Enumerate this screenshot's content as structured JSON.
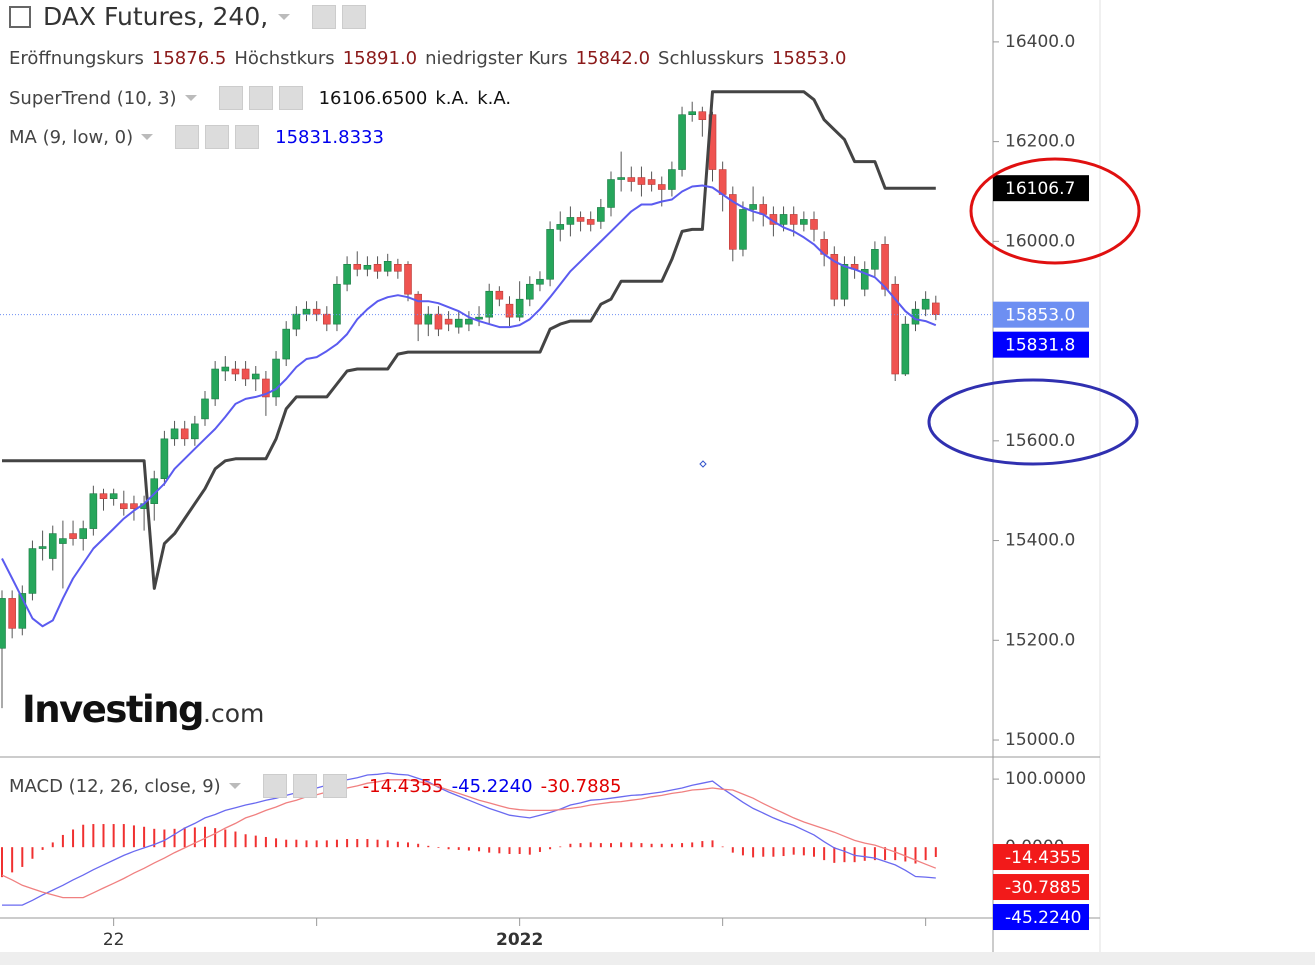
{
  "chart_data": [
    {
      "type": "candlestick",
      "title": "DAX Futures, 240,",
      "header": [
        {
          "label": "Eröffnungskurs",
          "value": "15876.5"
        },
        {
          "label": "Höchstkurs",
          "value": "15891.0"
        },
        {
          "label": "niedrigster Kurs",
          "value": "15842.0"
        },
        {
          "label": "Schlusskurs",
          "value": "15853.0"
        }
      ],
      "categories": [
        null,
        null,
        null,
        null,
        null,
        null,
        null,
        null,
        null,
        null,
        null,
        "22",
        null,
        null,
        null,
        null,
        null,
        null,
        null,
        null,
        null,
        null,
        null,
        null,
        null,
        null,
        null,
        null,
        null,
        null,
        null,
        null,
        null,
        null,
        null,
        null,
        null,
        null,
        null,
        null,
        null,
        null,
        null,
        null,
        null,
        null,
        null,
        null,
        null,
        null,
        null,
        "2022",
        null,
        null,
        null,
        null,
        null,
        null,
        null,
        null,
        null,
        null,
        null,
        null,
        null,
        null,
        null,
        null,
        null,
        null,
        null,
        null,
        null,
        null,
        null,
        null,
        null,
        null,
        null,
        null,
        null,
        null,
        null,
        null,
        null,
        null,
        null,
        null,
        null,
        null,
        null,
        null,
        null
      ],
      "open": [
        15184,
        15284,
        15224,
        15294,
        15384,
        15364,
        15394,
        15414,
        15404,
        15424,
        15494,
        15484,
        15474,
        15474,
        15464,
        15474,
        15524,
        15604,
        15624,
        15604,
        15644,
        15684,
        15740,
        15744,
        15744,
        15724,
        15724,
        15688,
        15764,
        15824,
        15854,
        15864,
        15854,
        15834,
        15914,
        15954,
        15944,
        15954,
        15940,
        15954,
        15954,
        15894,
        15834,
        15854,
        15844,
        15828,
        15834,
        15844,
        15848,
        15900,
        15874,
        15848,
        15884,
        15914,
        15924,
        16024,
        16034,
        16048,
        16044,
        16040,
        16068,
        16124,
        16128,
        16128,
        16124,
        16114,
        16104,
        16144,
        16254,
        16260,
        16254,
        16144,
        16094,
        15984,
        16064,
        16074,
        16054,
        16034,
        16054,
        16034,
        16044,
        16004,
        15974,
        15884,
        15954,
        15904,
        15944,
        15994,
        15914,
        15734,
        15834,
        15864,
        15876.5
      ],
      "high": [
        15300,
        15300,
        15310,
        15400,
        15420,
        15430,
        15440,
        15440,
        15440,
        15510,
        15504,
        15504,
        15500,
        15490,
        15490,
        15540,
        15620,
        15640,
        15640,
        15650,
        15700,
        15760,
        15770,
        15760,
        15760,
        15750,
        15740,
        15780,
        15840,
        15870,
        15880,
        15880,
        15870,
        15930,
        15970,
        15980,
        15970,
        15970,
        15975,
        15965,
        15960,
        15900,
        15870,
        15870,
        15860,
        15860,
        15860,
        15870,
        15915,
        15910,
        15890,
        15920,
        15930,
        15940,
        16040,
        16060,
        16070,
        16060,
        16060,
        16085,
        16140,
        16180,
        16150,
        16150,
        16140,
        16130,
        16160,
        16270,
        16280,
        16270,
        16260,
        16160,
        16110,
        16080,
        16110,
        16090,
        16070,
        16070,
        16070,
        16060,
        16060,
        16020,
        15990,
        15970,
        15970,
        15960,
        16000,
        16010,
        15930,
        15850,
        15880,
        15900,
        15891
      ],
      "low": [
        15064,
        15204,
        15210,
        15280,
        15360,
        15340,
        15304,
        15390,
        15380,
        15410,
        15460,
        15470,
        15450,
        15440,
        15420,
        15440,
        15510,
        15590,
        15590,
        15590,
        15630,
        15670,
        15720,
        15720,
        15710,
        15700,
        15650,
        15670,
        15750,
        15810,
        15840,
        15840,
        15820,
        15820,
        15900,
        15930,
        15930,
        15925,
        15930,
        15925,
        15880,
        15800,
        15810,
        15810,
        15820,
        15815,
        15820,
        15830,
        15835,
        15870,
        15830,
        15840,
        15870,
        15900,
        15910,
        16000,
        16010,
        16020,
        16020,
        16025,
        16050,
        16100,
        16100,
        16090,
        16100,
        16070,
        16090,
        16130,
        16240,
        16210,
        16120,
        16060,
        15960,
        15970,
        16040,
        16030,
        16010,
        16020,
        16010,
        16020,
        16000,
        15950,
        15870,
        15870,
        15925,
        15890,
        15930,
        15890,
        15720,
        15730,
        15820,
        15850,
        15842
      ],
      "close": [
        15284,
        15224,
        15294,
        15384,
        15388,
        15414,
        15404,
        15404,
        15424,
        15494,
        15484,
        15494,
        15464,
        15464,
        15474,
        15524,
        15604,
        15624,
        15604,
        15634,
        15684,
        15744,
        15748,
        15734,
        15724,
        15734,
        15688,
        15764,
        15824,
        15854,
        15864,
        15854,
        15834,
        15914,
        15954,
        15944,
        15952,
        15940,
        15960,
        15940,
        15894,
        15834,
        15854,
        15824,
        15834,
        15844,
        15844,
        15848,
        15900,
        15884,
        15848,
        15884,
        15914,
        15924,
        16024,
        16034,
        16048,
        16040,
        16034,
        16068,
        16124,
        16128,
        16120,
        16114,
        16114,
        16104,
        16144,
        16254,
        16260,
        16244,
        16144,
        16094,
        15984,
        16064,
        16074,
        16054,
        16034,
        16054,
        16034,
        16044,
        16024,
        15974,
        15884,
        15954,
        15944,
        15944,
        15984,
        15904,
        15734,
        15834,
        15864,
        15884,
        15853
      ],
      "up_color": "#26a65b",
      "down_color": "#ef5350",
      "last_price_label": "15853.0",
      "last_price_color": "#6d8ff2",
      "series": [
        {
          "name": "SuperTrend (10, 3)",
          "color": "#444444",
          "values": [
            15560,
            15560,
            15560,
            15560,
            15560,
            15560,
            15560,
            15560,
            15560,
            15560,
            15560,
            15560,
            15560,
            15560,
            15560,
            15304,
            15394,
            15414,
            15444,
            15474,
            15504,
            15544,
            15560,
            15564,
            15564,
            15564,
            15564,
            15604,
            15664,
            15688,
            15688,
            15688,
            15688,
            15714,
            15740,
            15744,
            15744,
            15744,
            15744,
            15774,
            15778,
            15778,
            15778,
            15778,
            15778,
            15778,
            15778,
            15778,
            15778,
            15778,
            15778,
            15778,
            15778,
            15778,
            15824,
            15834,
            15840,
            15840,
            15840,
            15874,
            15884,
            15920,
            15920,
            15920,
            15920,
            15920,
            15964,
            16020,
            16024,
            16024,
            16300,
            16300,
            16300,
            16300,
            16300,
            16300,
            16300,
            16300,
            16300,
            16300,
            16284,
            16244,
            16224,
            16204,
            16160,
            16160,
            16160,
            16106.65,
            16106.65,
            16106.65,
            16106.65,
            16106.65,
            16106.65
          ],
          "legend_values": [
            "16106.6500",
            "k.A.",
            "k.A."
          ],
          "legend_color": "#111111",
          "axis_label": "16106.7",
          "axis_label_color": "#000000"
        },
        {
          "name": "MA (9, low, 0)",
          "color": "#5b5bf0",
          "values": [
            15364,
            15324,
            15284,
            15244,
            15228,
            15240,
            15284,
            15324,
            15354,
            15384,
            15404,
            15424,
            15444,
            15460,
            15474,
            15494,
            15514,
            15544,
            15564,
            15584,
            15604,
            15624,
            15648,
            15674,
            15684,
            15688,
            15694,
            15704,
            15724,
            15748,
            15764,
            15768,
            15780,
            15794,
            15814,
            15844,
            15864,
            15880,
            15888,
            15892,
            15888,
            15880,
            15880,
            15876,
            15868,
            15860,
            15848,
            15840,
            15834,
            15828,
            15828,
            15832,
            15844,
            15864,
            15888,
            15914,
            15940,
            15960,
            15980,
            16000,
            16020,
            16040,
            16060,
            16074,
            16074,
            16080,
            16084,
            16100,
            16110,
            16112,
            16108,
            16094,
            16080,
            16068,
            16060,
            16054,
            16040,
            16028,
            16020,
            16008,
            15994,
            15974,
            15960,
            15950,
            15944,
            15936,
            15928,
            15908,
            15884,
            15860,
            15844,
            15840,
            15831.8333
          ],
          "legend_values": [
            "15831.8333"
          ],
          "legend_color": "#0000ee",
          "axis_label": "15831.8",
          "axis_label_color": "#0000ff"
        }
      ],
      "ylim": [
        14976,
        16484
      ],
      "yticks": [
        {
          "value": 15000,
          "label": "15000.0"
        },
        {
          "value": 15200,
          "label": "15200.0"
        },
        {
          "value": 15400,
          "label": "15400.0"
        },
        {
          "value": 15600,
          "label": "15600.0"
        },
        {
          "value": 15800,
          "label": "15800.0"
        },
        {
          "value": 16000,
          "label": "16000.0"
        },
        {
          "value": 16200,
          "label": "16200.0"
        },
        {
          "value": 16400,
          "label": "16400.0"
        }
      ],
      "watermark": [
        "Investing",
        ".com"
      ]
    },
    {
      "type": "macd",
      "title": "MACD (12, 26, close, 9)",
      "series": [
        {
          "style": "histogram",
          "color": "#f03030",
          "values": [
            -44,
            -37,
            -29,
            -17,
            -4,
            7,
            18,
            26,
            33,
            34,
            34,
            34,
            34,
            32,
            30,
            27,
            26,
            27,
            29,
            29,
            30,
            28,
            26,
            23,
            19,
            17,
            15,
            13,
            11,
            11,
            10,
            10,
            10,
            11,
            12,
            12,
            12,
            11,
            10,
            8,
            7,
            5,
            2,
            -1,
            -3,
            -4,
            -5,
            -6,
            -8,
            -9,
            -10,
            -10,
            -11,
            -7,
            -3,
            1,
            5,
            6,
            7,
            6,
            6,
            7,
            7,
            6,
            5,
            5,
            5,
            6,
            7,
            9,
            10,
            1,
            -8,
            -12,
            -15,
            -14,
            -14,
            -13,
            -11,
            -12,
            -14,
            -19,
            -23,
            -22,
            -22,
            -20,
            -19,
            -19,
            -19,
            -21,
            -24,
            -19,
            -14.4355
          ],
          "legend_value": "-14.4355",
          "legend_color": "#e00000",
          "axis_label": "-14.4355",
          "axis_label_color": "#f21a1a"
        },
        {
          "style": "line",
          "color": "#6a6af0",
          "values": [
            -85,
            -85,
            -85,
            -78,
            -70,
            -63,
            -56,
            -48,
            -41,
            -33,
            -26,
            -19,
            -12,
            -6,
            -1,
            4,
            10,
            19,
            28,
            35,
            43,
            48,
            54,
            58,
            62,
            65,
            69,
            72,
            76,
            80,
            84,
            87,
            91,
            95,
            99,
            102,
            106,
            107,
            109,
            107,
            106,
            101,
            96,
            88,
            81,
            75,
            69,
            63,
            57,
            52,
            47,
            45,
            43,
            47,
            51,
            56,
            62,
            65,
            69,
            70,
            72,
            74,
            76,
            77,
            79,
            81,
            84,
            87,
            91,
            94,
            97,
            86,
            76,
            66,
            57,
            50,
            43,
            37,
            32,
            25,
            18,
            8,
            -1,
            -6,
            -12,
            -14,
            -16,
            -21,
            -26,
            -34,
            -43,
            -44,
            -45.224
          ],
          "legend_value": "-45.2240",
          "legend_color": "#0000ee",
          "axis_label": "-45.2240",
          "axis_label_color": "#0000ff"
        },
        {
          "style": "line",
          "color": "#f08080",
          "values": [
            -41,
            -48,
            -56,
            -61,
            -66,
            -70,
            -74,
            -74,
            -74,
            -67,
            -60,
            -53,
            -46,
            -38,
            -31,
            -23,
            -16,
            -8,
            -1,
            6,
            13,
            20,
            28,
            35,
            43,
            48,
            54,
            59,
            65,
            69,
            74,
            77,
            81,
            84,
            87,
            90,
            94,
            96,
            99,
            99,
            99,
            96,
            94,
            89,
            84,
            79,
            74,
            69,
            65,
            61,
            57,
            55,
            54,
            54,
            54,
            55,
            57,
            59,
            62,
            64,
            66,
            67,
            69,
            71,
            74,
            76,
            79,
            81,
            84,
            85,
            87,
            85,
            84,
            78,
            72,
            64,
            57,
            50,
            43,
            37,
            32,
            27,
            22,
            16,
            10,
            6,
            3,
            -2,
            -7,
            -13,
            -19,
            -25,
            -30.7885
          ],
          "legend_value": "-30.7885",
          "legend_color": "#e00000",
          "axis_label": "-30.7885",
          "axis_label_color": "#f21a1a"
        }
      ],
      "ylim": [
        -104,
        131
      ],
      "yticks": [
        {
          "value": 0,
          "label": "0.0000"
        },
        {
          "value": 100,
          "label": "100.0000"
        }
      ]
    }
  ]
}
